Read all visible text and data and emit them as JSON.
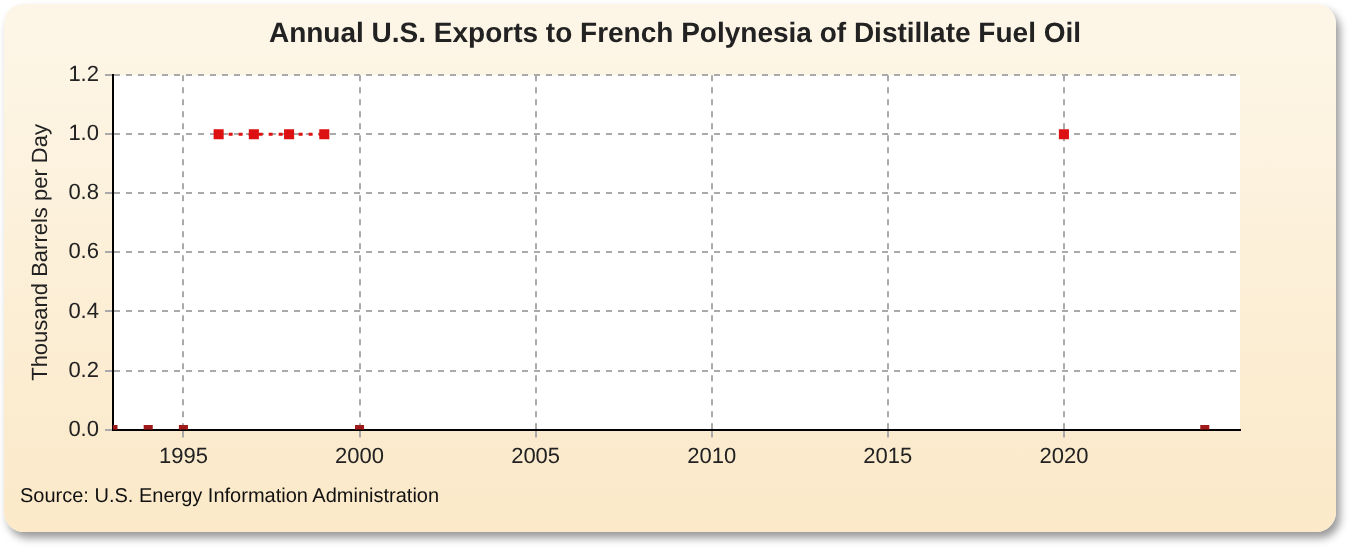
{
  "chart_data": {
    "type": "line",
    "title": "Annual U.S. Exports to French Polynesia of Distillate Fuel Oil",
    "ylabel": "Thousand Barrels per Day",
    "xlim": [
      1993,
      2025
    ],
    "xticks": [
      1995,
      2000,
      2005,
      2010,
      2015,
      2020
    ],
    "ylim": [
      0,
      1.2
    ],
    "yticks": [
      {
        "value": 0,
        "label": "0.0"
      },
      {
        "value": 0.2,
        "label": "0.2"
      },
      {
        "value": 0.4,
        "label": "0.4"
      },
      {
        "value": 0.6,
        "label": "0.6"
      },
      {
        "value": 0.8,
        "label": "0.8"
      },
      {
        "value": 1,
        "label": "1.0"
      },
      {
        "value": 1.2,
        "label": "1.2"
      }
    ],
    "series": [
      {
        "type": "scatter",
        "color": "#a01a1a",
        "x": [
          1993,
          1994,
          1995,
          2000,
          2024
        ],
        "values": [
          0,
          0,
          0,
          0,
          0
        ]
      },
      {
        "color": "#dd1111",
        "x": [
          1996,
          1997,
          1998,
          1999,
          2000,
          2020
        ],
        "values": [
          1,
          1,
          1,
          1,
          null,
          1
        ]
      }
    ],
    "grid": true,
    "legend": false,
    "marker": "square",
    "line_style": "dotted",
    "annotations": [
      "Source: U.S. Energy Information Administration"
    ]
  }
}
